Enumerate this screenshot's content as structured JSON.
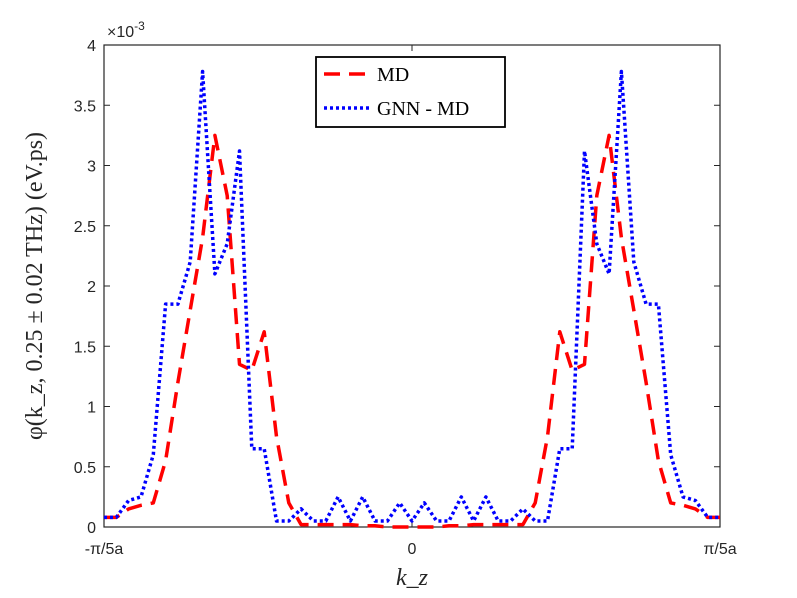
{
  "chart_data": {
    "type": "line",
    "title": "",
    "xlabel": "k_z",
    "ylabel": "φ(k_z, 0.25 ± 0.02 THz) (eV.ps)",
    "y_scale_label": "×10^-3",
    "y_scale_base": "×10",
    "y_scale_exp": "-3",
    "xlim": [
      -50,
      50
    ],
    "ylim": [
      0,
      4
    ],
    "xticks": [
      {
        "value": -50,
        "label": "-π/5a"
      },
      {
        "value": 0,
        "label": "0"
      },
      {
        "value": 50,
        "label": "π/5a"
      }
    ],
    "yticks": [
      {
        "value": 0,
        "label": "0"
      },
      {
        "value": 0.5,
        "label": "0.5"
      },
      {
        "value": 1,
        "label": "1"
      },
      {
        "value": 1.5,
        "label": "1.5"
      },
      {
        "value": 2,
        "label": "2"
      },
      {
        "value": 2.5,
        "label": "2.5"
      },
      {
        "value": 3,
        "label": "3"
      },
      {
        "value": 3.5,
        "label": "3.5"
      },
      {
        "value": 4,
        "label": "4"
      }
    ],
    "legend_position": "top-center",
    "grid": false,
    "series": [
      {
        "name": "MD",
        "color": "#ff0000",
        "style": "dashed",
        "x": [
          -50,
          -48,
          -46,
          -44,
          -42,
          -40,
          -38,
          -36,
          -34,
          -32,
          -30,
          -28,
          -26,
          -24,
          -22,
          -20,
          -18,
          -16,
          -14,
          -12,
          -10,
          -8,
          -6,
          -4,
          -2,
          0,
          2,
          4,
          6,
          8,
          10,
          12,
          14,
          16,
          18,
          20,
          22,
          24,
          26,
          28,
          30,
          32,
          34,
          36,
          38,
          40,
          42,
          44,
          46,
          48,
          50
        ],
        "values": [
          0.08,
          0.08,
          0.15,
          0.18,
          0.2,
          0.55,
          1.2,
          1.8,
          2.4,
          3.25,
          2.75,
          1.35,
          1.3,
          1.62,
          0.75,
          0.2,
          0.02,
          0.02,
          0.02,
          0.02,
          0.02,
          0.01,
          0.01,
          0.0,
          0.0,
          0.0,
          0.0,
          0.0,
          0.01,
          0.01,
          0.02,
          0.02,
          0.02,
          0.02,
          0.02,
          0.2,
          0.75,
          1.62,
          1.3,
          1.35,
          2.75,
          3.25,
          2.4,
          1.8,
          1.2,
          0.55,
          0.2,
          0.18,
          0.15,
          0.08,
          0.08
        ]
      },
      {
        "name": "GNN - MD",
        "color": "#0000ff",
        "style": "dotted",
        "x": [
          -50,
          -48,
          -46,
          -44,
          -42,
          -40,
          -38,
          -36,
          -34,
          -32,
          -30,
          -28,
          -26,
          -24,
          -22,
          -20,
          -18,
          -16,
          -14,
          -12,
          -10,
          -8,
          -6,
          -4,
          -2,
          0,
          2,
          4,
          6,
          8,
          10,
          12,
          14,
          16,
          18,
          20,
          22,
          24,
          26,
          28,
          30,
          32,
          34,
          36,
          38,
          40,
          42,
          44,
          46,
          48,
          50
        ],
        "values": [
          0.08,
          0.08,
          0.22,
          0.25,
          0.6,
          1.85,
          1.85,
          2.2,
          3.78,
          2.1,
          2.35,
          3.12,
          0.65,
          0.65,
          0.05,
          0.05,
          0.15,
          0.05,
          0.05,
          0.25,
          0.05,
          0.25,
          0.05,
          0.05,
          0.2,
          0.05,
          0.2,
          0.05,
          0.05,
          0.25,
          0.05,
          0.25,
          0.05,
          0.05,
          0.15,
          0.05,
          0.05,
          0.65,
          0.65,
          3.12,
          2.35,
          2.1,
          3.78,
          2.2,
          1.85,
          1.85,
          0.6,
          0.25,
          0.22,
          0.08,
          0.08
        ]
      }
    ]
  }
}
